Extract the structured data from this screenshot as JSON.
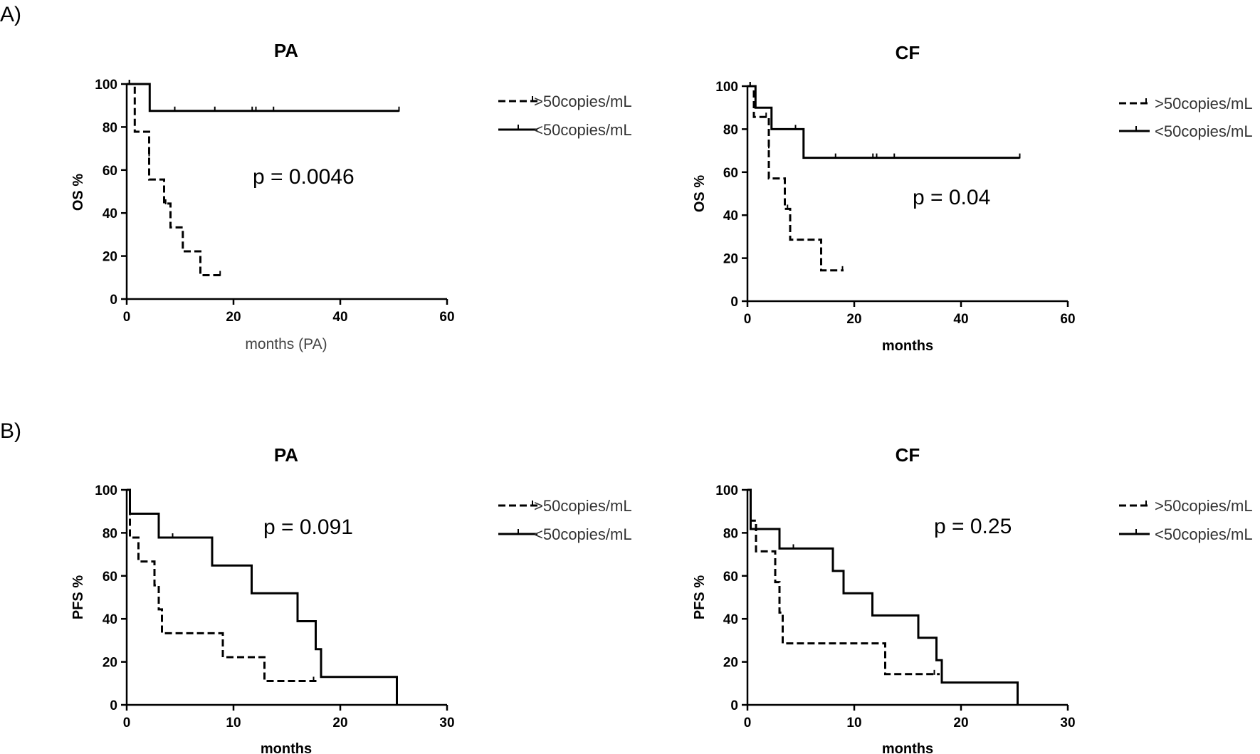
{
  "panel_labels": [
    "A)",
    "B)"
  ],
  "legend_items": [
    {
      "label": ">50copies/mL",
      "style": "dashed"
    },
    {
      "label": "<50copies/mL",
      "style": "solid"
    }
  ],
  "chart_data": [
    {
      "type": "line",
      "subtype": "kaplan-meier",
      "title": "PA",
      "xlabel": "months (PA)",
      "ylabel": "OS %",
      "xlim": [
        0,
        60
      ],
      "ylim": [
        0,
        100
      ],
      "xticks": [
        0,
        20,
        40,
        60
      ],
      "yticks": [
        0,
        20,
        40,
        60,
        80,
        100
      ],
      "annotation": "p = 0.0046",
      "series": [
        {
          "name": ">50copies/mL",
          "style": "dashed",
          "steps": [
            [
              0,
              100
            ],
            [
              1.5,
              77.8
            ],
            [
              4.2,
              55.6
            ],
            [
              7,
              44.4
            ],
            [
              8.2,
              33.3
            ],
            [
              10.5,
              22.2
            ],
            [
              13.8,
              11.1
            ],
            [
              18,
              11.1
            ]
          ],
          "censored": [
            [
              0.5,
              100
            ],
            [
              4.2,
              66.7
            ],
            [
              7.3,
              44.4
            ],
            [
              17.5,
              11.1
            ]
          ]
        },
        {
          "name": "<50copies/mL",
          "style": "solid",
          "steps": [
            [
              0,
              100
            ],
            [
              4.3,
              87.5
            ],
            [
              51,
              87.5
            ]
          ],
          "censored": [
            [
              0.5,
              100
            ],
            [
              9,
              87.5
            ],
            [
              16.5,
              87.5
            ],
            [
              23.5,
              87.5
            ],
            [
              24.2,
              87.5
            ],
            [
              27.5,
              87.5
            ],
            [
              51,
              87.5
            ]
          ]
        }
      ]
    },
    {
      "type": "line",
      "subtype": "kaplan-meier",
      "title": "CF",
      "xlabel": "months",
      "ylabel": "OS %",
      "xlim": [
        0,
        60
      ],
      "ylim": [
        0,
        100
      ],
      "xticks": [
        0,
        20,
        40,
        60
      ],
      "yticks": [
        0,
        20,
        40,
        60,
        80,
        100
      ],
      "annotation": "p = 0.04",
      "series": [
        {
          "name": ">50copies/mL",
          "style": "dashed",
          "steps": [
            [
              0,
              100
            ],
            [
              1.2,
              85.7
            ],
            [
              4,
              57.1
            ],
            [
              7,
              42.9
            ],
            [
              8,
              28.6
            ],
            [
              13.8,
              14.3
            ],
            [
              18,
              14.3
            ]
          ],
          "censored": [
            [
              0.5,
              100
            ],
            [
              3.5,
              85.7
            ],
            [
              4,
              71.4
            ],
            [
              7.5,
              42.9
            ],
            [
              17.8,
              14.3
            ]
          ]
        },
        {
          "name": "<50copies/mL",
          "style": "solid",
          "steps": [
            [
              0,
              100
            ],
            [
              1.5,
              90
            ],
            [
              4.5,
              80
            ],
            [
              10.5,
              66.7
            ],
            [
              51,
              66.7
            ]
          ],
          "censored": [
            [
              0.5,
              100
            ],
            [
              9,
              80
            ],
            [
              16.5,
              66.7
            ],
            [
              23.5,
              66.7
            ],
            [
              24.2,
              66.7
            ],
            [
              27.5,
              66.7
            ],
            [
              51,
              66.7
            ]
          ]
        }
      ]
    },
    {
      "type": "line",
      "subtype": "kaplan-meier",
      "title": "PA",
      "xlabel": "months",
      "ylabel": "PFS %",
      "xlim": [
        0,
        30
      ],
      "ylim": [
        0,
        100
      ],
      "xticks": [
        0,
        10,
        20,
        30
      ],
      "yticks": [
        0,
        20,
        40,
        60,
        80,
        100
      ],
      "annotation": "p = 0.091",
      "series": [
        {
          "name": ">50copies/mL",
          "style": "dashed",
          "steps": [
            [
              0,
              100
            ],
            [
              0.3,
              77.8
            ],
            [
              1.1,
              66.7
            ],
            [
              2.6,
              55.6
            ],
            [
              3,
              44.4
            ],
            [
              3.3,
              33.3
            ],
            [
              9,
              22.2
            ],
            [
              12.9,
              11.1
            ],
            [
              18,
              11.1
            ]
          ],
          "censored": [
            [
              17.5,
              11.1
            ]
          ]
        },
        {
          "name": "<50copies/mL",
          "style": "solid",
          "steps": [
            [
              0,
              100
            ],
            [
              0.3,
              88.9
            ],
            [
              3,
              77.8
            ],
            [
              8,
              64.8
            ],
            [
              11.7,
              51.9
            ],
            [
              16,
              38.9
            ],
            [
              17.7,
              25.9
            ],
            [
              18.2,
              13
            ],
            [
              25.3,
              13
            ],
            [
              25.3,
              0
            ]
          ],
          "censored": [
            [
              4.3,
              77.8
            ]
          ]
        }
      ]
    },
    {
      "type": "line",
      "subtype": "kaplan-meier",
      "title": "CF",
      "xlabel": "months",
      "ylabel": "PFS %",
      "xlim": [
        0,
        30
      ],
      "ylim": [
        0,
        100
      ],
      "xticks": [
        0,
        10,
        20,
        30
      ],
      "yticks": [
        0,
        20,
        40,
        60,
        80,
        100
      ],
      "annotation": "p = 0.25",
      "series": [
        {
          "name": ">50copies/mL",
          "style": "dashed",
          "steps": [
            [
              0,
              100
            ],
            [
              0.3,
              85.7
            ],
            [
              0.8,
              71.4
            ],
            [
              2.6,
              57.1
            ],
            [
              3,
              42.9
            ],
            [
              3.3,
              28.6
            ],
            [
              12.9,
              14.3
            ],
            [
              18,
              14.3
            ]
          ],
          "censored": [
            [
              17.5,
              14.3
            ]
          ]
        },
        {
          "name": "<50copies/mL",
          "style": "solid",
          "steps": [
            [
              0,
              100
            ],
            [
              0.3,
              81.8
            ],
            [
              3,
              72.7
            ],
            [
              8,
              62.3
            ],
            [
              9,
              51.9
            ],
            [
              11.7,
              41.6
            ],
            [
              16,
              31.2
            ],
            [
              17.7,
              20.8
            ],
            [
              18.2,
              10.4
            ],
            [
              25.3,
              10.4
            ],
            [
              25.3,
              0
            ]
          ],
          "censored": [
            [
              4.3,
              72.7
            ]
          ]
        }
      ]
    }
  ]
}
